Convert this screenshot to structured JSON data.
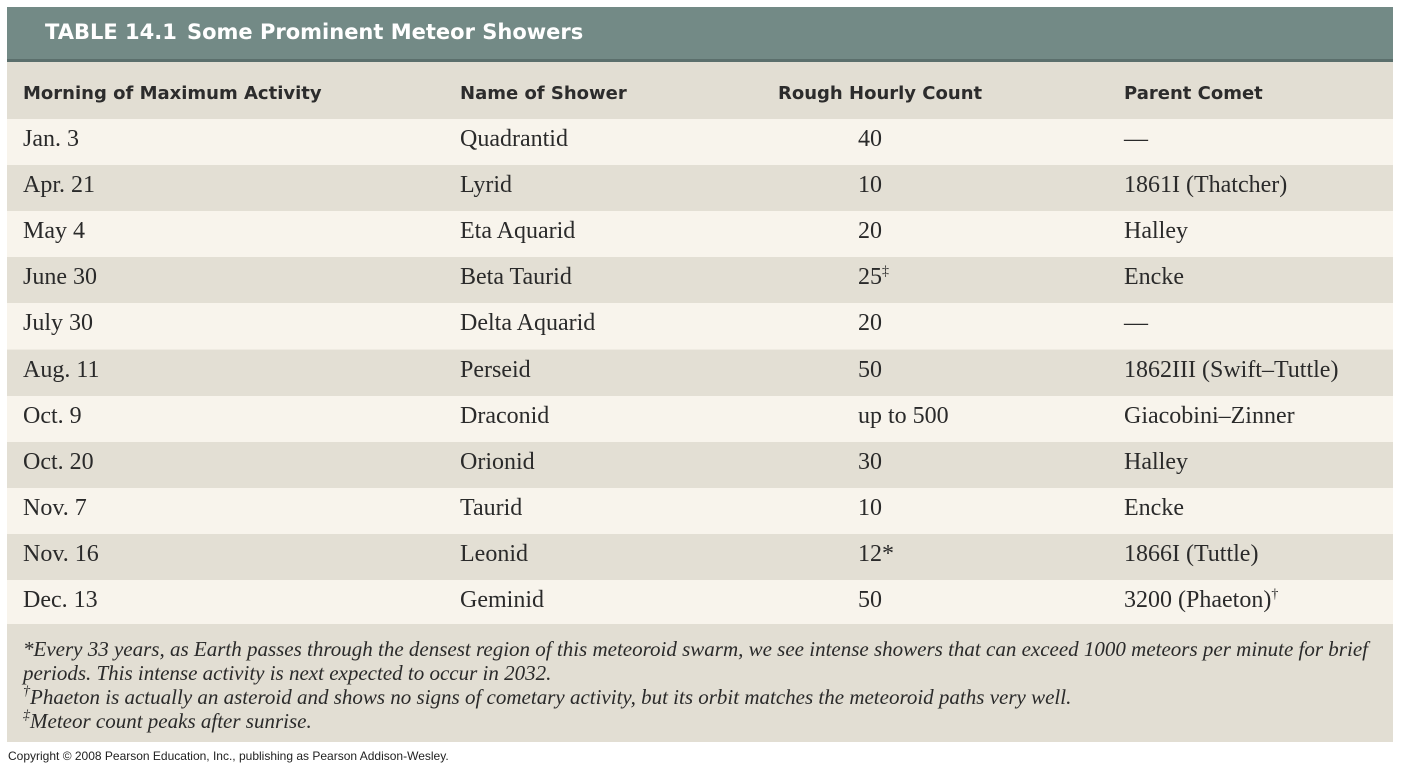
{
  "title": {
    "number": "TABLE 14.1",
    "name": "Some Prominent Meteor Showers"
  },
  "columns": [
    "Morning of Maximum Activity",
    "Name of Shower",
    "Rough Hourly Count",
    "Parent Comet"
  ],
  "rows": [
    {
      "date": "Jan. 3",
      "shower": "Quadrantid",
      "count": "40",
      "count_mark": "",
      "comet": "—",
      "comet_mark": ""
    },
    {
      "date": "Apr. 21",
      "shower": "Lyrid",
      "count": "10",
      "count_mark": "",
      "comet": "1861I (Thatcher)",
      "comet_mark": ""
    },
    {
      "date": "May 4",
      "shower": "Eta Aquarid",
      "count": "20",
      "count_mark": "",
      "comet": "Halley",
      "comet_mark": ""
    },
    {
      "date": "June 30",
      "shower": "Beta Taurid",
      "count": "25",
      "count_mark": "‡",
      "comet": "Encke",
      "comet_mark": ""
    },
    {
      "date": "July 30",
      "shower": "Delta Aquarid",
      "count": "20",
      "count_mark": "",
      "comet": "—",
      "comet_mark": ""
    },
    {
      "date": "Aug. 11",
      "shower": "Perseid",
      "count": "50",
      "count_mark": "",
      "comet": "1862III (Swift–Tuttle)",
      "comet_mark": ""
    },
    {
      "date": "Oct. 9",
      "shower": "Draconid",
      "count": "up to 500",
      "count_mark": "",
      "comet": "Giacobini–Zinner",
      "comet_mark": ""
    },
    {
      "date": "Oct. 20",
      "shower": "Orionid",
      "count": "30",
      "count_mark": "",
      "comet": "Halley",
      "comet_mark": ""
    },
    {
      "date": "Nov. 7",
      "shower": "Taurid",
      "count": "10",
      "count_mark": "",
      "comet": "Encke",
      "comet_mark": ""
    },
    {
      "date": "Nov. 16",
      "shower": "Leonid",
      "count": "12*",
      "count_mark": "",
      "comet": "1866I (Tuttle)",
      "comet_mark": ""
    },
    {
      "date": "Dec. 13",
      "shower": "Geminid",
      "count": "50",
      "count_mark": "",
      "comet": "3200 (Phaeton)",
      "comet_mark": "†"
    }
  ],
  "footnotes": {
    "star_line1": "*Every 33 years, as Earth passes through the densest region of this meteoroid swarm, we see intense showers that can exceed 1000 meteors per minute for brief",
    "star_line2": "periods. This intense activity is next expected to occur in 2032.",
    "dagger_mark": "†",
    "dagger_text": "Phaeton is actually an asteroid and shows no signs of cometary activity, but its orbit matches the meteoroid paths very well.",
    "ddagger_mark": "‡",
    "ddagger_text": "Meteor count peaks after sunrise."
  },
  "copyright": "Copyright © 2008 Pearson Education, Inc., publishing as Pearson Addison-Wesley."
}
